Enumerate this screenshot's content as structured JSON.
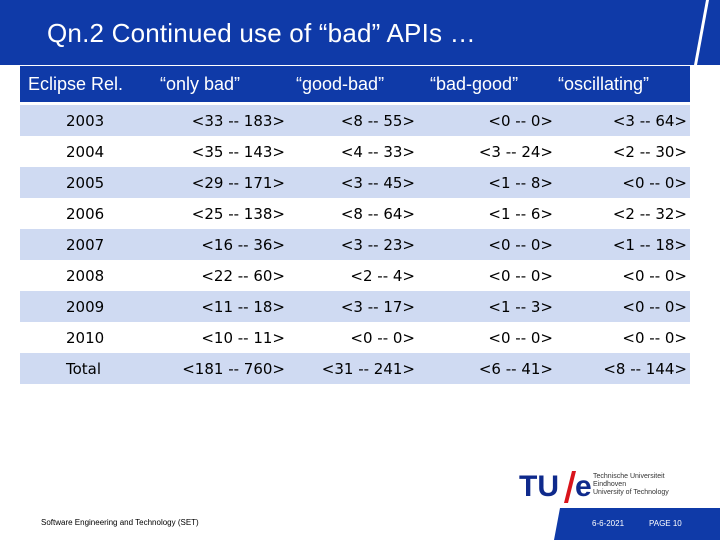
{
  "slide": {
    "title": "Qn.2 Continued use of “bad” APIs …"
  },
  "table": {
    "headers": [
      "Eclipse Rel.",
      "“only bad”",
      "“good-bad”",
      "“bad-good”",
      "“oscillating”"
    ],
    "rows": [
      [
        "2003",
        "<33 -- 183>",
        "<8 -- 55>",
        "<0 -- 0>",
        "<3 -- 64>"
      ],
      [
        "2004",
        "<35 -- 143>",
        "<4 -- 33>",
        "<3 -- 24>",
        "<2 -- 30>"
      ],
      [
        "2005",
        "<29 -- 171>",
        "<3 -- 45>",
        "<1 -- 8>",
        "<0 -- 0>"
      ],
      [
        "2006",
        "<25 -- 138>",
        "<8 -- 64>",
        "<1 -- 6>",
        "<2 -- 32>"
      ],
      [
        "2007",
        "<16 -- 36>",
        "<3 -- 23>",
        "<0 -- 0>",
        "<1 -- 18>"
      ],
      [
        "2008",
        "<22 -- 60>",
        "<2 -- 4>",
        "<0 -- 0>",
        "<0 -- 0>"
      ],
      [
        "2009",
        "<11 -- 18>",
        "<3 -- 17>",
        "<1 -- 3>",
        "<0 -- 0>"
      ],
      [
        "2010",
        "<10 -- 11>",
        "<0 -- 0>",
        "<0 -- 0>",
        "<0 -- 0>"
      ],
      [
        "Total",
        "<181 -- 760>",
        "<31 -- 241>",
        "<6 -- 41>",
        "<8 -- 144>"
      ]
    ]
  },
  "footer": {
    "left_text": "Software Engineering and Technology (SET)",
    "date": "6-6-2021",
    "page": "PAGE 10"
  },
  "logo": {
    "tu": "TU",
    "e": "e",
    "lines": [
      "Technische Universiteit",
      "Eindhoven",
      "University of Technology"
    ]
  },
  "colors": {
    "header_blue": "#0f3aa8",
    "row_alt": "#cfdaf2",
    "logo_blue": "#0f2a8c",
    "logo_red": "#d9141b"
  }
}
